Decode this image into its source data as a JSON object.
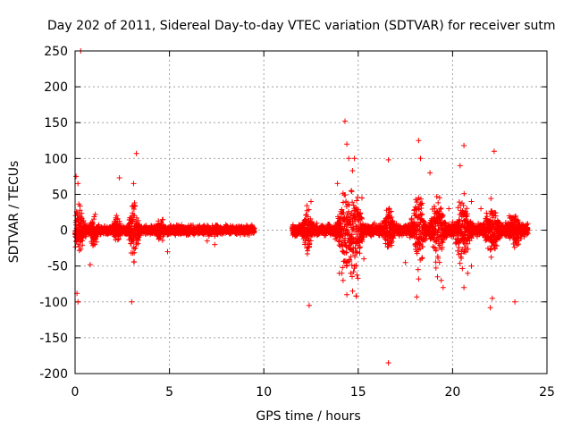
{
  "chart_data": {
    "type": "scatter",
    "title": "Day 202 of 2011, Sidereal Day-to-day VTEC variation (SDTVAR) for receiver sutm",
    "xlabel": "GPS time / hours",
    "ylabel": "SDTVAR / TECUs",
    "xlim": [
      0,
      25
    ],
    "ylim": [
      -200,
      250
    ],
    "xticks": [
      0,
      5,
      10,
      15,
      20,
      25
    ],
    "yticks": [
      -200,
      -150,
      -100,
      -50,
      0,
      50,
      100,
      150,
      200,
      250
    ],
    "grid": true,
    "marker": "+",
    "color": "#ff0000",
    "segments": [
      {
        "x_start": 0.0,
        "x_end": 9.5,
        "x_step": 0.01,
        "amplitude": 8
      },
      {
        "x_start": 11.5,
        "x_end": 24.0,
        "x_step": 0.01,
        "amplitude": 10
      }
    ],
    "bursts": [
      {
        "x": 0.2,
        "spread": 0.25,
        "amplitude": 38
      },
      {
        "x": 1.0,
        "spread": 0.15,
        "amplitude": 30
      },
      {
        "x": 2.2,
        "spread": 0.15,
        "amplitude": 22
      },
      {
        "x": 3.1,
        "spread": 0.2,
        "amplitude": 55
      },
      {
        "x": 4.5,
        "spread": 0.2,
        "amplitude": 12
      },
      {
        "x": 12.3,
        "spread": 0.2,
        "amplitude": 35
      },
      {
        "x": 14.3,
        "spread": 0.3,
        "amplitude": 65
      },
      {
        "x": 14.8,
        "spread": 0.3,
        "amplitude": 85
      },
      {
        "x": 16.6,
        "spread": 0.2,
        "amplitude": 45
      },
      {
        "x": 18.2,
        "spread": 0.25,
        "amplitude": 70
      },
      {
        "x": 19.2,
        "spread": 0.3,
        "amplitude": 55
      },
      {
        "x": 20.5,
        "spread": 0.3,
        "amplitude": 60
      },
      {
        "x": 22.1,
        "spread": 0.3,
        "amplitude": 40
      },
      {
        "x": 23.3,
        "spread": 0.3,
        "amplitude": 22
      }
    ],
    "outliers": [
      [
        0.3,
        250
      ],
      [
        0.05,
        75
      ],
      [
        0.15,
        65
      ],
      [
        0.1,
        -88
      ],
      [
        0.15,
        -100
      ],
      [
        0.8,
        -48
      ],
      [
        2.35,
        73
      ],
      [
        3.0,
        -100
      ],
      [
        3.25,
        107
      ],
      [
        3.1,
        65
      ],
      [
        4.9,
        -30
      ],
      [
        7.4,
        -20
      ],
      [
        7.0,
        -15
      ],
      [
        12.4,
        -105
      ],
      [
        12.5,
        40
      ],
      [
        13.9,
        65
      ],
      [
        14.0,
        -60
      ],
      [
        14.3,
        152
      ],
      [
        14.4,
        120
      ],
      [
        14.5,
        100
      ],
      [
        14.8,
        100
      ],
      [
        14.9,
        -92
      ],
      [
        14.7,
        -85
      ],
      [
        14.4,
        -90
      ],
      [
        14.2,
        -70
      ],
      [
        14.6,
        -60
      ],
      [
        16.6,
        98
      ],
      [
        16.6,
        -185
      ],
      [
        18.2,
        125
      ],
      [
        18.3,
        100
      ],
      [
        18.1,
        -93
      ],
      [
        18.2,
        -68
      ],
      [
        17.5,
        -45
      ],
      [
        18.8,
        80
      ],
      [
        19.5,
        -80
      ],
      [
        19.4,
        -70
      ],
      [
        19.2,
        -65
      ],
      [
        20.4,
        90
      ],
      [
        20.6,
        118
      ],
      [
        20.6,
        -80
      ],
      [
        20.8,
        -60
      ],
      [
        21.0,
        40
      ],
      [
        21.0,
        -50
      ],
      [
        22.2,
        110
      ],
      [
        22.1,
        -95
      ],
      [
        22.0,
        -108
      ],
      [
        23.3,
        -100
      ],
      [
        23.0,
        20
      ],
      [
        15.2,
        45
      ],
      [
        15.3,
        -40
      ],
      [
        19.8,
        30
      ],
      [
        21.5,
        30
      ]
    ]
  }
}
